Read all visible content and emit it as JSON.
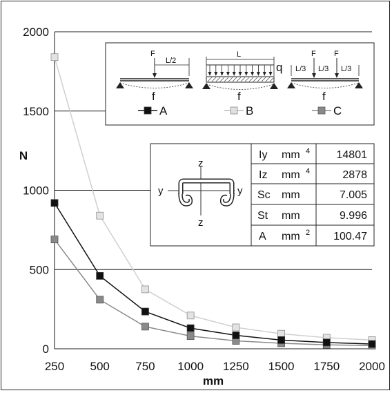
{
  "chart_data": {
    "type": "line",
    "title": "",
    "xlabel": "mm",
    "ylabel": "N",
    "xlim": [
      250,
      2000
    ],
    "ylim": [
      0,
      2000
    ],
    "x": [
      250,
      500,
      750,
      1000,
      1250,
      1500,
      1750,
      2000
    ],
    "x_tick_labels": [
      "250",
      "500",
      "750",
      "1000",
      "1250",
      "1500",
      "1750",
      "2000"
    ],
    "y_tick_labels": [
      "0",
      "500",
      "1000",
      "1500",
      "2000"
    ],
    "series": [
      {
        "name": "A",
        "color": "#111111",
        "values": [
          920,
          460,
          235,
          130,
          85,
          55,
          40,
          30
        ]
      },
      {
        "name": "B",
        "color": "#cfcfcf",
        "values": [
          1840,
          840,
          375,
          210,
          135,
          95,
          70,
          55
        ]
      },
      {
        "name": "C",
        "color": "#8a8a8a",
        "values": [
          690,
          310,
          140,
          80,
          50,
          35,
          25,
          20
        ]
      }
    ],
    "grid": "horizontal",
    "legend": "top-right",
    "load_cases": {
      "A": {
        "load_label": "F",
        "dim_label": "L/2",
        "deflection_label": "f"
      },
      "B": {
        "span_label": "L",
        "load_label": "q",
        "deflection_label": "f"
      },
      "C": {
        "load_labels": [
          "F",
          "F"
        ],
        "dim_labels": [
          "L/3",
          "L/3",
          "L/3"
        ],
        "deflection_label": "f"
      }
    },
    "section": {
      "axis_labels": {
        "top": "z",
        "bottom": "z",
        "left": "y",
        "right": "y"
      },
      "properties": [
        {
          "name": "Iy",
          "unit": "mm",
          "unit_sup": "4",
          "value": "14801"
        },
        {
          "name": "Iz",
          "unit": "mm",
          "unit_sup": "4",
          "value": "2878"
        },
        {
          "name": "Sc",
          "unit": "mm",
          "unit_sup": "",
          "value": "7.005"
        },
        {
          "name": "St",
          "unit": "mm",
          "unit_sup": "",
          "value": "9.996"
        },
        {
          "name": "A",
          "unit": "mm",
          "unit_sup": "2",
          "value": "100.47"
        }
      ]
    }
  }
}
